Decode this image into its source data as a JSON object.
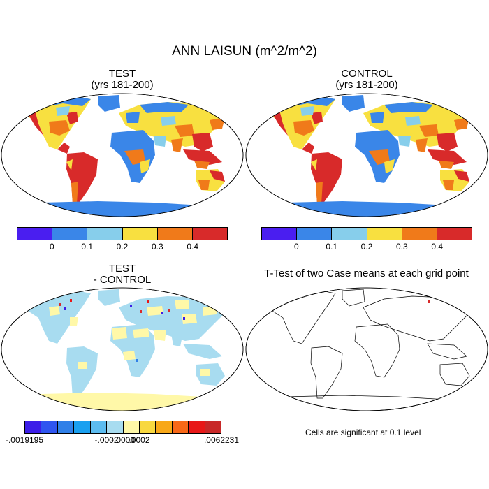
{
  "figure": {
    "title": "ANN LAISUN (m^2/m^2)"
  },
  "panels": {
    "test": {
      "title": "TEST",
      "subtitle": "(yrs 181-200)"
    },
    "control": {
      "title": "CONTROL",
      "subtitle": "(yrs 181-200)"
    },
    "diff": {
      "title": "TEST",
      "subtitle": "- CONTROL"
    },
    "ttest": {
      "title": "T-Test of two Case means at each grid point",
      "note": "Cells are significant at 0.1 level"
    }
  },
  "colorbar_main": {
    "colors": [
      "#4a1ef0",
      "#3a86e8",
      "#87ceeb",
      "#f8e040",
      "#f07a1a",
      "#d82a2a"
    ],
    "labels": [
      "0",
      "0.1",
      "0.2",
      "0.3",
      "0.4"
    ]
  },
  "colorbar_diff": {
    "colors": [
      "#3c1ee8",
      "#2f55f0",
      "#3080e8",
      "#1aa0f0",
      "#5cbcf0",
      "#a8dcf0",
      "#fff8a8",
      "#f8d840",
      "#f8a818",
      "#f86818",
      "#e81818",
      "#c82828"
    ],
    "labels": [
      "-.0019195",
      "-.0002",
      "-.0000",
      ".0002",
      ".0062231"
    ]
  },
  "colors": {
    "ocean": "#ffffff",
    "land_outline": "#000000"
  }
}
